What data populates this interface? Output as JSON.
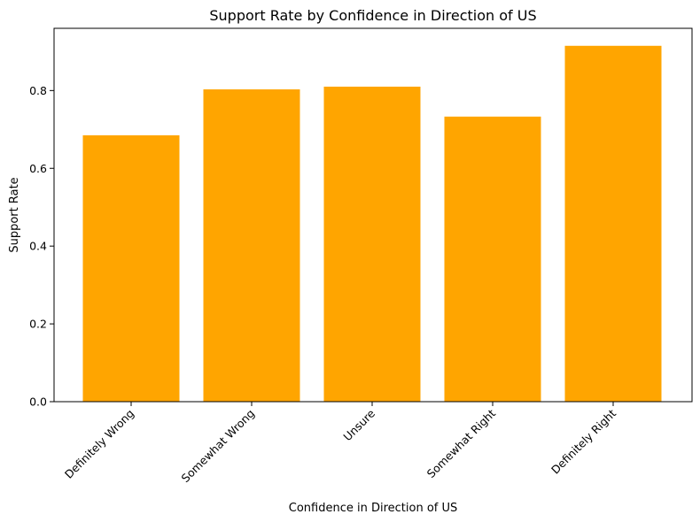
{
  "chart_data": {
    "type": "bar",
    "title": "Support Rate by Confidence in Direction of US",
    "xlabel": "Confidence in Direction of US",
    "ylabel": "Support Rate",
    "categories": [
      "Definitely Wrong",
      "Somewhat Wrong",
      "Unsure",
      "Somewhat Right",
      "Definitely Right"
    ],
    "values": [
      0.685,
      0.803,
      0.81,
      0.733,
      0.915
    ],
    "ylim": [
      0,
      0.96
    ],
    "yticks": [
      0.0,
      0.2,
      0.4,
      0.6,
      0.8
    ],
    "ytick_labels": [
      "0.0",
      "0.2",
      "0.4",
      "0.6",
      "0.8"
    ],
    "bar_color": "#ffa500",
    "grid": false,
    "legend": "none"
  }
}
